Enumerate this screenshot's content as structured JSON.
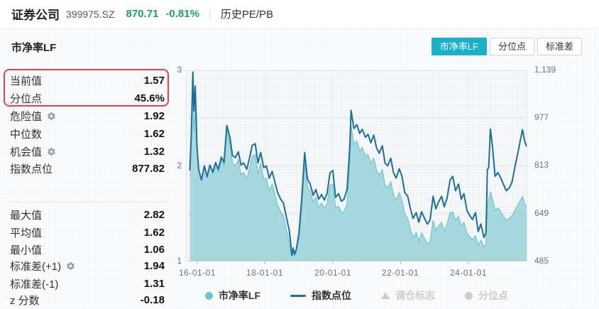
{
  "header": {
    "name": "证券公司",
    "code": "399975.SZ",
    "price": "870.71",
    "change": "-0.81%",
    "price_color": "#1aa35e",
    "menu": "历史PE/PB",
    "separator": "|"
  },
  "toolbar": {
    "active_color": "#1ab0c8",
    "buttons": [
      {
        "label": "市净率LF",
        "active": true
      },
      {
        "label": "分位点",
        "active": false
      },
      {
        "label": "标准差",
        "active": false
      }
    ]
  },
  "panel": {
    "title": "市净率LF",
    "highlight_color": "#e84343",
    "rows": [
      {
        "label": "当前值",
        "value": "1.57",
        "gear": false,
        "highlighted": true
      },
      {
        "label": "分位点",
        "value": "45.6%",
        "gear": false,
        "highlighted": true
      },
      {
        "label": "危险值",
        "value": "1.92",
        "gear": true,
        "highlighted": false
      },
      {
        "label": "中位数",
        "value": "1.62",
        "gear": false,
        "highlighted": false
      },
      {
        "label": "机会值",
        "value": "1.32",
        "gear": true,
        "highlighted": false
      },
      {
        "label": "指数点位",
        "value": "877.82",
        "gear": false,
        "highlighted": false
      },
      {
        "label": "最大值",
        "value": "2.82",
        "gear": false,
        "highlighted": false
      },
      {
        "label": "平均值",
        "value": "1.62",
        "gear": false,
        "highlighted": false
      },
      {
        "label": "最小值",
        "value": "1.06",
        "gear": false,
        "highlighted": false
      },
      {
        "label": "标准差(+1)",
        "value": "1.94",
        "gear": true,
        "highlighted": false
      },
      {
        "label": "标准差(-1)",
        "value": "1.31",
        "gear": false,
        "highlighted": false
      },
      {
        "label": "z 分数",
        "value": "-0.18",
        "gear": false,
        "highlighted": false
      }
    ]
  },
  "chart_data": {
    "type": "area",
    "title": "市净率LF",
    "x_domain": {
      "min": 2015.665,
      "max": 2025.74
    },
    "left_axis": {
      "min": 1,
      "max": 3,
      "ticks": [
        {
          "v": 3,
          "label": "3"
        },
        {
          "v": 2,
          "label": "2"
        },
        {
          "v": 1,
          "label": "1"
        }
      ],
      "gridlines": [
        2.5,
        2.0,
        1.5
      ]
    },
    "right_axis": {
      "min": 485,
      "max": 1139,
      "ticks": [
        {
          "v": 1139,
          "label": "1,139"
        },
        {
          "v": 977,
          "label": "977"
        },
        {
          "v": 813,
          "label": "813"
        },
        {
          "v": 649,
          "label": "649"
        },
        {
          "v": 485,
          "label": "485"
        }
      ]
    },
    "x_ticks": [
      {
        "year": 2016,
        "label": "16-01-01"
      },
      {
        "year": 2018,
        "label": "18-01-01"
      },
      {
        "year": 2020,
        "label": "20-01-01"
      },
      {
        "year": 2022,
        "label": "22-01-01"
      },
      {
        "year": 2024,
        "label": "24-01-01"
      }
    ],
    "series_meta": [
      {
        "name": "市净率LF",
        "type": "area",
        "axis": "left",
        "stroke": "#72c7d3",
        "fill": "#a5d9de"
      },
      {
        "name": "指数点位",
        "type": "line",
        "axis": "right",
        "stroke": "#1d6d9d"
      }
    ],
    "points_format": [
      "year",
      "pb_lf",
      "index_points"
    ],
    "points": [
      [
        2015.78,
        1.95,
        796
      ],
      [
        2015.82,
        2.3,
        910
      ],
      [
        2015.87,
        2.82,
        1133
      ],
      [
        2015.9,
        2.35,
        1000
      ],
      [
        2015.94,
        2.6,
        1085
      ],
      [
        2015.99,
        2.2,
        880
      ],
      [
        2016.04,
        1.97,
        800
      ],
      [
        2016.12,
        1.84,
        764
      ],
      [
        2016.21,
        2.0,
        812
      ],
      [
        2016.29,
        1.88,
        775
      ],
      [
        2016.37,
        2.0,
        815
      ],
      [
        2016.46,
        1.92,
        790
      ],
      [
        2016.54,
        2.02,
        824
      ],
      [
        2016.62,
        1.94,
        800
      ],
      [
        2016.71,
        2.06,
        842
      ],
      [
        2016.79,
        2.0,
        824
      ],
      [
        2016.87,
        2.37,
        950
      ],
      [
        2016.96,
        2.24,
        912
      ],
      [
        2017.04,
        2.03,
        848
      ],
      [
        2017.12,
        2.0,
        840
      ],
      [
        2017.21,
        2.06,
        860
      ],
      [
        2017.29,
        1.91,
        815
      ],
      [
        2017.37,
        1.93,
        822
      ],
      [
        2017.46,
        1.86,
        800
      ],
      [
        2017.54,
        1.97,
        838
      ],
      [
        2017.62,
        2.1,
        882
      ],
      [
        2017.71,
        2.12,
        888
      ],
      [
        2017.79,
        1.91,
        822
      ],
      [
        2017.87,
        2.03,
        858
      ],
      [
        2017.96,
        1.86,
        806
      ],
      [
        2018.04,
        1.87,
        812
      ],
      [
        2018.12,
        1.74,
        770
      ],
      [
        2018.21,
        1.81,
        793
      ],
      [
        2018.29,
        1.7,
        757
      ],
      [
        2018.37,
        1.59,
        721
      ],
      [
        2018.46,
        1.52,
        698
      ],
      [
        2018.54,
        1.48,
        685
      ],
      [
        2018.62,
        1.35,
        642
      ],
      [
        2018.71,
        1.2,
        593
      ],
      [
        2018.75,
        1.1,
        554
      ],
      [
        2018.79,
        1.06,
        506
      ],
      [
        2018.83,
        1.11,
        531
      ],
      [
        2018.87,
        1.06,
        509
      ],
      [
        2018.92,
        1.1,
        525
      ],
      [
        2019.0,
        1.24,
        580
      ],
      [
        2019.08,
        1.55,
        695
      ],
      [
        2019.17,
        2.02,
        858
      ],
      [
        2019.25,
        1.78,
        766
      ],
      [
        2019.33,
        1.74,
        750
      ],
      [
        2019.42,
        1.62,
        711
      ],
      [
        2019.5,
        1.67,
        731
      ],
      [
        2019.58,
        1.57,
        698
      ],
      [
        2019.67,
        1.61,
        714
      ],
      [
        2019.75,
        1.56,
        695
      ],
      [
        2019.83,
        1.6,
        717
      ],
      [
        2019.92,
        1.8,
        789
      ],
      [
        2020.0,
        1.81,
        796
      ],
      [
        2020.08,
        1.56,
        704
      ],
      [
        2020.17,
        1.58,
        717
      ],
      [
        2020.25,
        1.51,
        691
      ],
      [
        2020.33,
        1.52,
        698
      ],
      [
        2020.42,
        1.6,
        731
      ],
      [
        2020.5,
        2.02,
        874
      ],
      [
        2020.54,
        2.42,
        1002
      ],
      [
        2020.62,
        2.23,
        940
      ],
      [
        2020.71,
        2.26,
        953
      ],
      [
        2020.79,
        2.16,
        923
      ],
      [
        2020.87,
        2.19,
        937
      ],
      [
        2020.96,
        2.1,
        910
      ],
      [
        2021.04,
        2.12,
        920
      ],
      [
        2021.12,
        2.03,
        891
      ],
      [
        2021.21,
        2.08,
        917
      ],
      [
        2021.29,
        1.96,
        874
      ],
      [
        2021.37,
        1.9,
        855
      ],
      [
        2021.46,
        1.96,
        881
      ],
      [
        2021.54,
        1.8,
        822
      ],
      [
        2021.62,
        1.77,
        812
      ],
      [
        2021.71,
        1.83,
        838
      ],
      [
        2021.79,
        1.7,
        789
      ],
      [
        2021.87,
        1.64,
        770
      ],
      [
        2021.96,
        1.72,
        802
      ],
      [
        2022.04,
        1.64,
        776
      ],
      [
        2022.12,
        1.5,
        721
      ],
      [
        2022.21,
        1.45,
        708
      ],
      [
        2022.29,
        1.34,
        665
      ],
      [
        2022.37,
        1.25,
        632
      ],
      [
        2022.46,
        1.3,
        652
      ],
      [
        2022.54,
        1.21,
        619
      ],
      [
        2022.62,
        1.3,
        655
      ],
      [
        2022.71,
        1.24,
        632
      ],
      [
        2022.79,
        1.18,
        613
      ],
      [
        2022.87,
        1.21,
        626
      ],
      [
        2022.96,
        1.43,
        708
      ],
      [
        2023.04,
        1.32,
        665
      ],
      [
        2023.12,
        1.37,
        688
      ],
      [
        2023.21,
        1.41,
        708
      ],
      [
        2023.29,
        1.32,
        672
      ],
      [
        2023.37,
        1.39,
        701
      ],
      [
        2023.46,
        1.51,
        763
      ],
      [
        2023.54,
        1.52,
        776
      ],
      [
        2023.62,
        1.43,
        727
      ],
      [
        2023.71,
        1.47,
        750
      ],
      [
        2023.79,
        1.37,
        698
      ],
      [
        2023.87,
        1.41,
        717
      ],
      [
        2023.96,
        1.29,
        659
      ],
      [
        2024.04,
        1.26,
        642
      ],
      [
        2024.12,
        1.23,
        629
      ],
      [
        2024.21,
        1.27,
        652
      ],
      [
        2024.29,
        1.17,
        587
      ],
      [
        2024.37,
        1.22,
        613
      ],
      [
        2024.46,
        1.15,
        567
      ],
      [
        2024.52,
        1.18,
        583
      ],
      [
        2024.56,
        1.62,
        799
      ],
      [
        2024.6,
        1.64,
        806
      ],
      [
        2024.65,
        1.73,
        938
      ],
      [
        2024.71,
        1.66,
        881
      ],
      [
        2024.79,
        1.53,
        776
      ],
      [
        2024.87,
        1.56,
        789
      ],
      [
        2024.96,
        1.52,
        770
      ],
      [
        2025.04,
        1.47,
        747
      ],
      [
        2025.12,
        1.43,
        727
      ],
      [
        2025.21,
        1.45,
        737
      ],
      [
        2025.29,
        1.48,
        757
      ],
      [
        2025.37,
        1.53,
        806
      ],
      [
        2025.46,
        1.59,
        855
      ],
      [
        2025.54,
        1.64,
        904
      ],
      [
        2025.6,
        1.68,
        936
      ],
      [
        2025.66,
        1.6,
        897
      ],
      [
        2025.72,
        1.57,
        877.82
      ]
    ],
    "legend": [
      {
        "label": "市净率LF",
        "shape": "circle",
        "color": "#6ec3cd",
        "active": true
      },
      {
        "label": "指数点位",
        "shape": "line",
        "color": "#1d6d9d",
        "active": true
      },
      {
        "label": "调仓标志",
        "shape": "triangle",
        "color": "#cdcdcd",
        "active": false
      },
      {
        "label": "分位点",
        "shape": "circle",
        "color": "#cdcdcd",
        "active": false
      }
    ]
  }
}
